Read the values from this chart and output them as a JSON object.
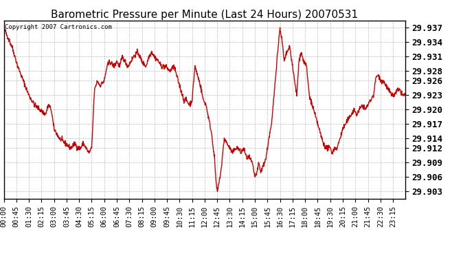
{
  "title": "Barometric Pressure per Minute (Last 24 Hours) 20070531",
  "copyright": "Copyright 2007 Cartronics.com",
  "line_color": "#cc0000",
  "bg_color": "#ffffff",
  "plot_bg_color": "#ffffff",
  "grid_color": "#bbbbbb",
  "yticks": [
    29.903,
    29.906,
    29.909,
    29.912,
    29.914,
    29.917,
    29.92,
    29.923,
    29.926,
    29.928,
    29.931,
    29.934,
    29.937
  ],
  "ylim": [
    29.9015,
    29.9385
  ],
  "xtick_labels": [
    "00:00",
    "00:45",
    "01:30",
    "02:15",
    "03:00",
    "03:45",
    "04:30",
    "05:15",
    "06:00",
    "06:45",
    "07:30",
    "08:15",
    "09:00",
    "09:45",
    "10:30",
    "11:15",
    "12:00",
    "12:45",
    "13:30",
    "14:15",
    "15:00",
    "15:45",
    "16:30",
    "17:15",
    "18:00",
    "18:45",
    "19:30",
    "20:15",
    "21:00",
    "21:45",
    "22:30",
    "23:15"
  ],
  "title_fontsize": 11,
  "tick_fontsize": 7.5,
  "ytick_fontsize": 9,
  "copyright_fontsize": 6.5,
  "line_width": 1.0
}
